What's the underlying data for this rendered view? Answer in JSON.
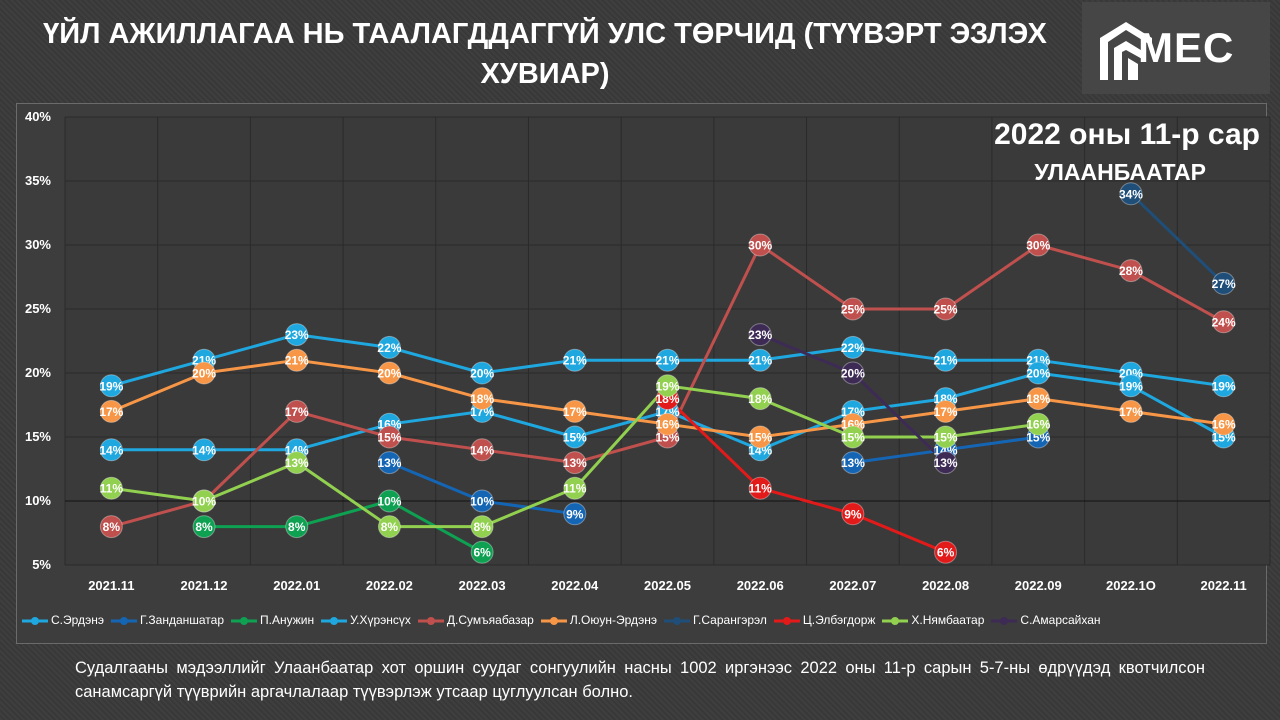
{
  "header": {
    "title": "ҮЙЛ АЖИЛЛАГАА НЬ ТААЛАГДДАГГҮЙ УЛС ТӨРЧИД (ТҮҮВЭРТ ЭЗЛЭХ ХУВИАР)",
    "logo_text": "MEC"
  },
  "chart_data": {
    "type": "line",
    "subtitle": "2022 оны 11-р сар",
    "location": "УЛААНБААТАР",
    "categories": [
      "2021.11",
      "2021.12",
      "2022.01",
      "2022.02",
      "2022.03",
      "2022.04",
      "2022.05",
      "2022.06",
      "2022.07",
      "2022.08",
      "2022.09",
      "2022.1O",
      "2022.11"
    ],
    "ylim": [
      5,
      40
    ],
    "yticks": [
      "5%",
      "10%",
      "15%",
      "20%",
      "25%",
      "30%",
      "35%",
      "40%"
    ],
    "grid": true,
    "legend_position": "bottom",
    "series": [
      {
        "name": "С.Эрдэнэ",
        "color": "#1fa7e0",
        "values": [
          19,
          21,
          23,
          22,
          20,
          21,
          21,
          21,
          22,
          21,
          21,
          20,
          19
        ]
      },
      {
        "name": "Г.Занданшатар",
        "color": "#1565b5",
        "values": [
          null,
          null,
          null,
          13,
          10,
          9,
          null,
          null,
          13,
          14,
          15,
          null,
          null
        ]
      },
      {
        "name": "П.Анужин",
        "color": "#0ea152",
        "values": [
          null,
          8,
          8,
          10,
          6,
          null,
          null,
          null,
          null,
          null,
          null,
          null,
          null
        ]
      },
      {
        "name": "У.Хүрэнсүх",
        "color": "#1fa7e0",
        "values": [
          14,
          14,
          14,
          16,
          17,
          15,
          17,
          14,
          17,
          18,
          20,
          19,
          15
        ]
      },
      {
        "name": "Д.Сумъяабазар",
        "color": "#c0504d",
        "values": [
          8,
          10,
          17,
          15,
          14,
          13,
          15,
          30,
          25,
          25,
          30,
          28,
          24
        ]
      },
      {
        "name": "Л.Оюун-Эрдэнэ",
        "color": "#f79646",
        "values": [
          17,
          20,
          21,
          20,
          18,
          17,
          16,
          15,
          16,
          17,
          18,
          17,
          16
        ]
      },
      {
        "name": "Г.Сарангэрэл",
        "color": "#1f4e79",
        "values": [
          null,
          null,
          null,
          null,
          null,
          null,
          null,
          null,
          null,
          null,
          null,
          34,
          27
        ]
      },
      {
        "name": "Ц.Элбэгдорж",
        "color": "#e31a1a",
        "values": [
          null,
          null,
          null,
          null,
          null,
          null,
          18,
          11,
          9,
          6,
          null,
          null,
          null
        ]
      },
      {
        "name": "Х.Нямбаатар",
        "color": "#92d050",
        "values": [
          11,
          10,
          13,
          8,
          8,
          11,
          19,
          18,
          15,
          15,
          16,
          null,
          null
        ]
      },
      {
        "name": "С.Амарсайхан",
        "color": "#3d2b56",
        "values": [
          null,
          null,
          null,
          null,
          null,
          null,
          null,
          23,
          20,
          13,
          null,
          null,
          null
        ]
      }
    ]
  },
  "footnote": "Судалгааны мэдээллийг Улаанбаатар хот оршин суудаг сонгуулийн насны 1002 иргэнээс 2022 оны 11-р сарын 5-7-ны өдрүүдэд квотчилсон санамсаргүй түүврийн аргачлалаар түүвэрлэж утсаар цуглуулсан болно."
}
